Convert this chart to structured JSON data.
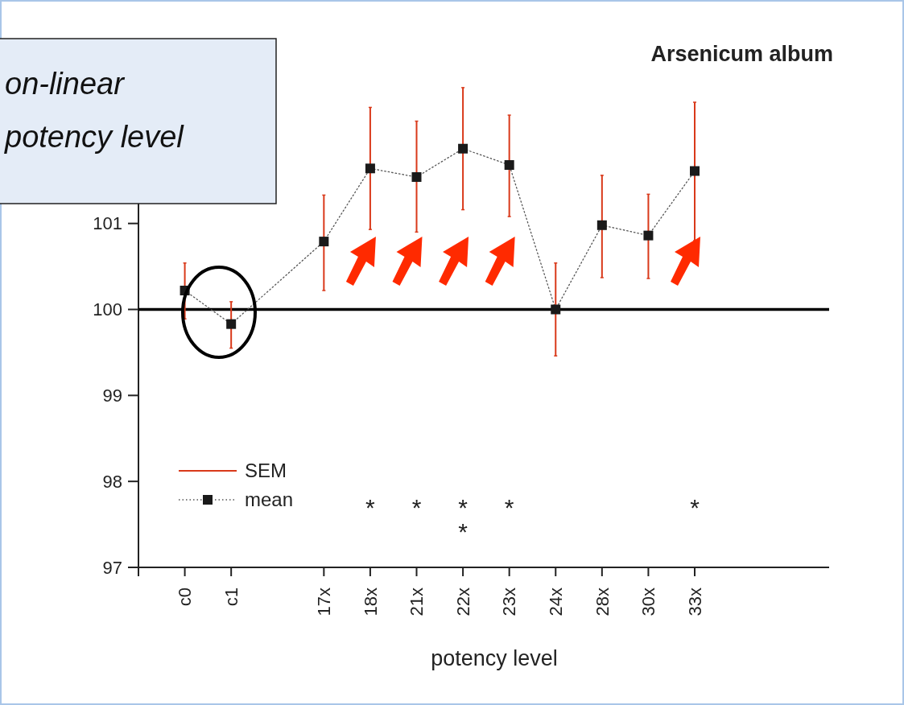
{
  "chart_data": {
    "type": "line",
    "title": "Arsenicum album",
    "xlabel": "potency level",
    "categories": [
      "c0",
      "c1",
      null,
      "17x",
      "18x",
      "21x",
      "22x",
      "23x",
      "24x",
      "28x",
      "30x",
      "33x"
    ],
    "series": [
      {
        "name": "mean",
        "color": "#1a1a1a",
        "marker": "square",
        "line_style": "dotted",
        "values": [
          100.22,
          99.83,
          null,
          100.79,
          101.64,
          101.54,
          101.87,
          101.68,
          100.0,
          100.98,
          100.86,
          101.61
        ],
        "errors": [
          [
            99.89,
            100.54
          ],
          [
            99.55,
            100.09
          ],
          null,
          [
            100.22,
            101.33
          ],
          [
            100.93,
            102.35
          ],
          [
            100.9,
            102.19
          ],
          [
            101.16,
            102.58
          ],
          [
            101.08,
            102.26
          ],
          [
            99.46,
            100.54
          ],
          [
            100.37,
            101.56
          ],
          [
            100.36,
            101.34
          ],
          [
            100.8,
            102.41
          ]
        ]
      }
    ],
    "ylim": [
      97,
      103
    ],
    "yticks": [
      97,
      98,
      99,
      100,
      101
    ],
    "ref_lines": [
      {
        "axis": "y",
        "value": 100,
        "color": "#000000"
      }
    ],
    "legend": "bottom left",
    "annotations": [
      "SEM",
      "on-linear\npotency level",
      "*",
      "*",
      "*",
      "*",
      "*",
      "*"
    ]
  }
}
